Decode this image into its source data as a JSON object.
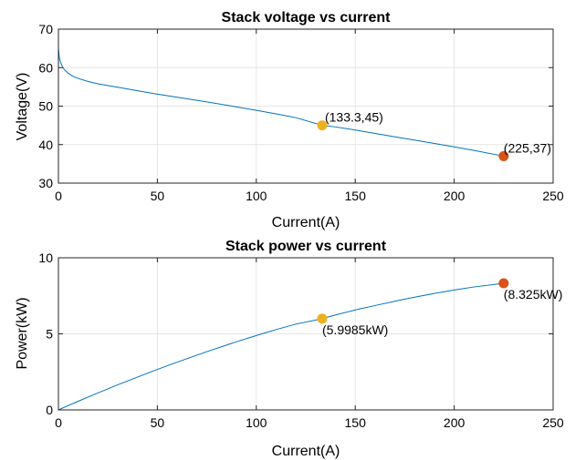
{
  "chart_data": [
    {
      "type": "line",
      "title": "Stack voltage vs current",
      "xlabel": "Current(A)",
      "ylabel": "Voltage(V)",
      "xlim": [
        0,
        250
      ],
      "ylim": [
        30,
        70
      ],
      "xticks": [
        0,
        50,
        100,
        150,
        200,
        250
      ],
      "yticks": [
        30,
        40,
        50,
        60,
        70
      ],
      "grid": true,
      "line_color": "#0072BD",
      "series": [
        {
          "x": [
            0,
            0.5,
            1,
            2,
            3,
            5,
            7.5,
            10,
            15,
            20,
            30,
            40,
            50,
            60,
            75,
            90,
            100,
            110,
            120,
            133.3,
            140,
            150,
            160,
            175,
            190,
            200,
            210,
            225
          ],
          "y": [
            65,
            62.5,
            61.5,
            60.3,
            59.5,
            58.5,
            57.7,
            57.2,
            56.4,
            55.8,
            54.9,
            54.0,
            53.1,
            52.3,
            51.1,
            49.8,
            48.9,
            48.0,
            47.0,
            45.0,
            44.6,
            43.8,
            42.9,
            41.6,
            40.3,
            39.4,
            38.5,
            37.0
          ]
        }
      ],
      "points": [
        {
          "x": 133.3,
          "y": 45,
          "label": "(133.3,45)",
          "color": "#EDB120"
        },
        {
          "x": 225,
          "y": 37,
          "label": "(225,37)",
          "color": "#D95319"
        }
      ]
    },
    {
      "type": "line",
      "title": "Stack power vs current",
      "xlabel": "Current(A)",
      "ylabel": "Power(kW)",
      "xlim": [
        0,
        250
      ],
      "ylim": [
        0,
        10
      ],
      "xticks": [
        0,
        50,
        100,
        150,
        200,
        250
      ],
      "yticks": [
        0,
        5,
        10
      ],
      "grid": true,
      "line_color": "#0072BD",
      "series": [
        {
          "x": [
            0,
            5,
            10,
            20,
            30,
            40,
            50,
            60,
            75,
            90,
            100,
            110,
            120,
            133.3,
            140,
            150,
            160,
            175,
            190,
            200,
            210,
            225
          ],
          "y": [
            0,
            0.29,
            0.57,
            1.12,
            1.65,
            2.16,
            2.66,
            3.14,
            3.83,
            4.48,
            4.89,
            5.28,
            5.64,
            5.9985,
            6.24,
            6.57,
            6.86,
            7.28,
            7.66,
            7.88,
            8.08,
            8.325
          ]
        }
      ],
      "points": [
        {
          "x": 133.3,
          "y": 5.9985,
          "label": "(5.9985kW)",
          "color": "#EDB120"
        },
        {
          "x": 225,
          "y": 8.325,
          "label": "(8.325kW)",
          "color": "#D95319"
        }
      ]
    }
  ]
}
